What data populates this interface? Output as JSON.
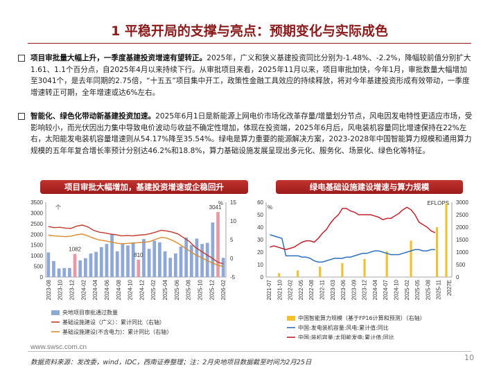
{
  "page": {
    "title": "1 平稳开局的支撑与亮点：预期变化与实际成色",
    "footer_url": "www.swsc.com.cn",
    "source_note": "数据资料来源：发改委，wind，IDC，西南证券整理；注：2月央地项目数据截至时间为2月25日",
    "page_number": "10"
  },
  "paragraphs": [
    {
      "lead": "项目审批量大幅上升，一季度基建投资增速有望转正。",
      "body": "2025年，广义和狭义基建投资同比分别为-1.48%、-2.2%，降幅较前值分别扩大1.61、1.1个百分点，自2025年4月以来持续下行。从审批项目来看，2025年11月以来，项目审批加快，今年1月，审批数量大幅增加至3041个，是去年同期的2.75倍，“十五五”项目集中开工，政策性金融工具效应的持续释放，将对今年基建投资形成有效带动，一季度增速转正可期，全年增速或达6%左右。"
    },
    {
      "lead": "智能化、绿色化带动新基建投资加速。",
      "body": "2025年6月1日是新能源上网电价市场化改革存量/增量划分节点，风电因发电特性更适应市场，受影响较小，而光伏因出力集中导致电价波动与收益不确定性增加，体现在投资端，2025年6月后，风电装机容量同比增速保持在22%左右，太阳能发电装机容量增速则从54.17%降至35.54%。绿电是算力重要的能源解决方案，2023-2028年中国智能算力规模和通用算力规模的五年年复合增长率预计分别达46.2%和18.8%，算力基础设施发展呈现出多元化、服务化、场景化、绿色化等特征。"
    }
  ],
  "chart_data": [
    {
      "type": "bar",
      "title": "项目审批大幅增加，基建投资增速或企稳回升",
      "left_unit": "个",
      "right_unit": "%",
      "ylim_left": [
        0,
        3500
      ],
      "yticks_left": [
        "0",
        "500",
        "1000",
        "1500",
        "2000",
        "2500",
        "3000",
        "3500"
      ],
      "ylim_right": [
        -5,
        15
      ],
      "yticks_right": [
        "-5",
        "0",
        "5",
        "10",
        "15"
      ],
      "x_tick_labels": [
        "2023-08",
        "2023-10",
        "2023-12",
        "2024-02",
        "2024-04",
        "2024-06",
        "2024-08",
        "2024-10",
        "2024-12",
        "2025-02",
        "2025-04",
        "2025-06",
        "2025-08",
        "2025-10",
        "2025-12",
        "2026-02"
      ],
      "bars": [
        1150,
        750,
        400,
        420,
        420,
        1082,
        780,
        880,
        1100,
        1180,
        1400,
        1550,
        2000,
        1200,
        1550,
        1480,
        1620,
        810,
        1780,
        1320,
        1700,
        1620,
        1200,
        900,
        1100,
        1430,
        1850,
        1500,
        1800,
        1550,
        1600,
        2550,
        3041,
        900
      ],
      "highlight_bars": [
        5,
        17,
        32
      ],
      "annotations": [
        {
          "index": 5,
          "label": "1082"
        },
        {
          "index": 17,
          "label": "810"
        },
        {
          "index": 32,
          "label": "3041"
        }
      ],
      "series": [
        {
          "name": "基础设施建设（广义）：累计同比（右轴）",
          "color": "#c0392b",
          "values": [
            8.5,
            8.2,
            8.3,
            8.1,
            8.0,
            8.6,
            8.9,
            8.4,
            7.5,
            7.0,
            6.8,
            6.5,
            6.3,
            6.0,
            6.1,
            6.0,
            6.2,
            6.3,
            6.6,
            7.0,
            7.5,
            7.3,
            7.0,
            6.5,
            5.5,
            4.5,
            3.0,
            2.0,
            1.0,
            0.1,
            -1.0,
            -1.48
          ]
        },
        {
          "name": "基础设施建设（不含电力）：累计同比（右轴）",
          "color": "#d98b2b",
          "values": [
            6.2,
            6.0,
            5.9,
            5.8,
            5.9,
            6.3,
            6.5,
            6.0,
            5.4,
            4.9,
            4.7,
            4.4,
            4.1,
            3.9,
            4.0,
            4.1,
            4.2,
            4.3,
            4.5,
            5.1,
            5.6,
            5.4,
            4.8,
            4.0,
            3.0,
            2.0,
            1.0,
            0.3,
            -0.5,
            -1.2,
            -1.8,
            -2.2
          ]
        }
      ],
      "legend": [
        "央地项目审批通过数量",
        "基础设施建设（广义）：累计同比（右轴）",
        "基础设施建设(不含电力)：累计同比（右轴）"
      ]
    },
    {
      "type": "bar",
      "title": "绿电基础设施建设增速与算力规模",
      "left_unit": "%",
      "right_unit": "EFLOPS",
      "ylim_left": [
        0,
        60
      ],
      "yticks_left": [
        "0",
        "10",
        "20",
        "30",
        "40",
        "50",
        "60"
      ],
      "ylim_right": [
        0,
        3000
      ],
      "yticks_right": [
        "0",
        "500",
        "1000",
        "1500",
        "2000",
        "2500",
        "3000"
      ],
      "x_tick_labels": [
        "2021-07",
        "2021-10",
        "2022-02",
        "2022-05",
        "2022-08",
        "2022-11",
        "2023-03",
        "2023-06",
        "2023-09",
        "2023-12",
        "2024-04",
        "2024-07",
        "2024-10",
        "2025-02",
        "2025-05",
        "2025-08",
        "2025-11",
        "2027E"
      ],
      "bars_series": {
        "name": "中国智能算力规模（基于FP16计算和预测）（右轴）",
        "color": "#f2c12e",
        "values": [
          155,
          260,
          414,
          560,
          725,
          1037,
          1460,
          2000,
          2950
        ]
      },
      "series": [
        {
          "name": "中国:发电装机容量:风电:累计值:同比",
          "color": "#2c6fbf",
          "values": [
            34,
            33,
            32,
            31,
            17,
            17,
            17,
            17,
            16,
            16,
            15,
            13,
            12,
            12,
            13,
            14,
            15,
            15,
            15,
            16,
            16,
            17,
            18,
            19,
            19,
            20,
            21,
            21,
            20,
            19,
            18,
            18,
            18,
            19,
            20,
            21,
            22,
            22,
            21,
            21,
            22,
            22
          ]
        },
        {
          "name": "中国:装机容量:太阳能发电:累计值:同比",
          "color": "#c0212b",
          "values": [
            24,
            25,
            24,
            23,
            22,
            23,
            24,
            26,
            28,
            29,
            29,
            28,
            31,
            35,
            38,
            43,
            47,
            50,
            55,
            55,
            53,
            52,
            50,
            50,
            50,
            50,
            49,
            48,
            46,
            47,
            47,
            49,
            51,
            54,
            56,
            54,
            50,
            44,
            42,
            40,
            37,
            35.5
          ]
        }
      ],
      "legend": [
        "中国智能算力规模（基于FP16计算和预测）（右轴）",
        "中国:发电装机容量:风电:累计值:同比",
        "中国:装机容量:太阳能发电:累计值:同比"
      ]
    }
  ]
}
